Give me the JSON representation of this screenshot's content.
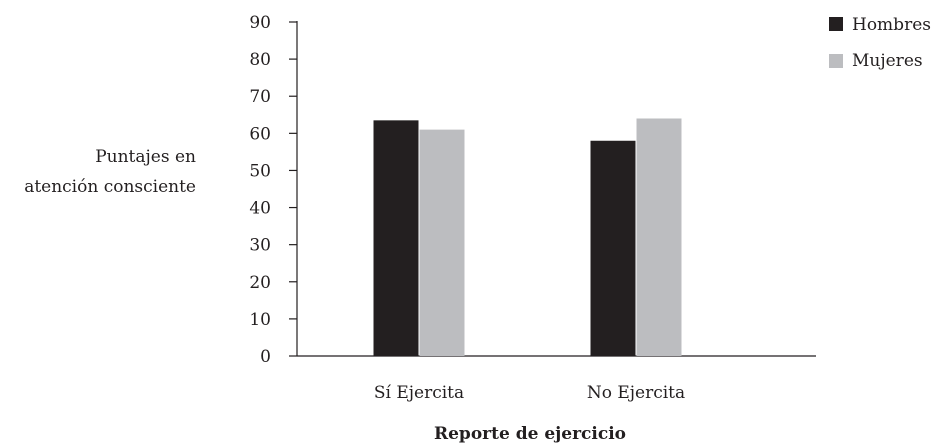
{
  "chart_data": {
    "type": "bar",
    "categories": [
      "Sí Ejercita",
      "No Ejercita"
    ],
    "series": [
      {
        "name": "Hombres",
        "values": [
          63.5,
          58
        ],
        "color": "#231f20"
      },
      {
        "name": "Mujeres",
        "values": [
          61,
          64
        ],
        "color": "#bcbdc0"
      }
    ],
    "ylabel": [
      "Puntajes en",
      "atención consciente"
    ],
    "xlabel": "Reporte de ejercicio",
    "ylim": [
      0,
      90
    ],
    "yticks": [
      0,
      10,
      20,
      30,
      40,
      50,
      60,
      70,
      80,
      90
    ],
    "grid": false,
    "legend": "top-right"
  }
}
